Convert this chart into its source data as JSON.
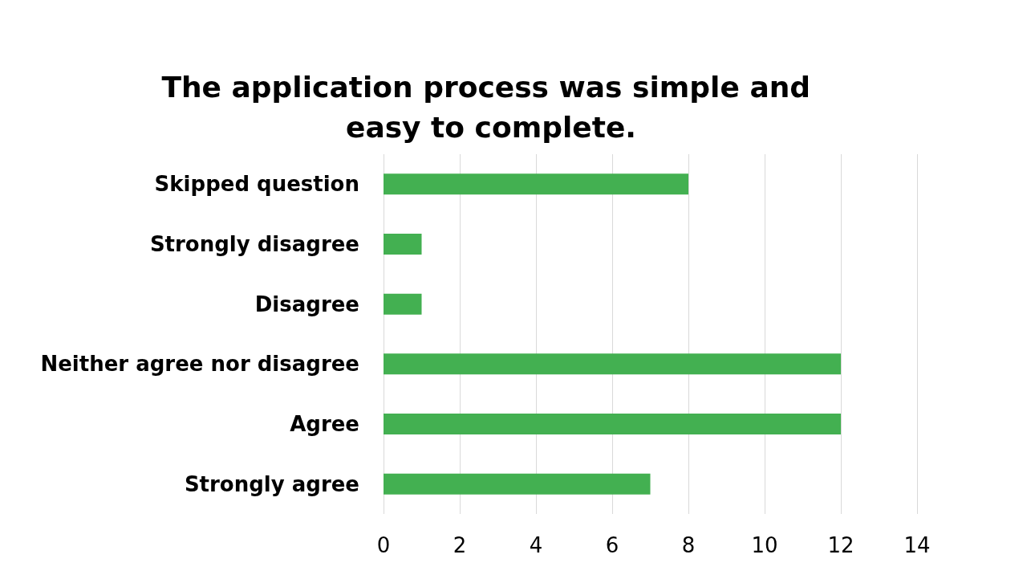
{
  "chart_data": {
    "type": "bar",
    "orientation": "horizontal",
    "title": "The application process was simple and easy to complete.",
    "categories": [
      "Skipped question",
      "Strongly disagree",
      "Disagree",
      "Neither agree nor disagree",
      "Agree",
      "Strongly agree"
    ],
    "values": [
      8,
      1,
      1,
      12,
      12,
      7
    ],
    "color": "#43b051",
    "xlim": [
      0,
      14
    ],
    "xticks": [
      0,
      2,
      4,
      6,
      8,
      10,
      12,
      14
    ],
    "grid": "x"
  }
}
